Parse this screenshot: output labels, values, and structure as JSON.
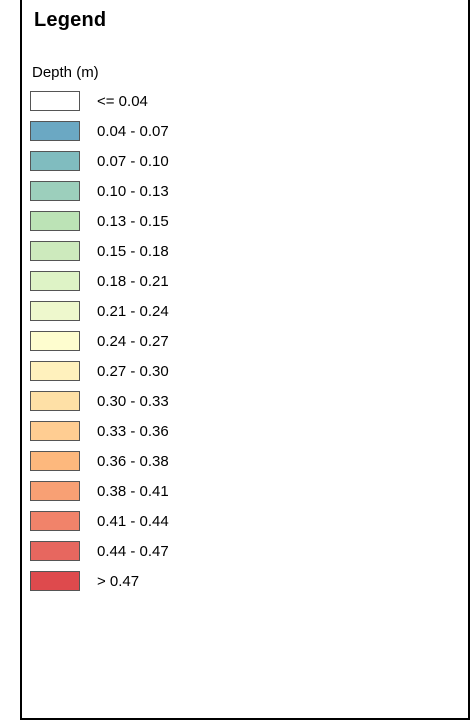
{
  "legend": {
    "title": "Legend",
    "field": "Depth (m)",
    "classes": [
      {
        "label": "<= 0.04",
        "color": "#ffffff"
      },
      {
        "label": "0.04 - 0.07",
        "color": "#6ba8c3"
      },
      {
        "label": "0.07 - 0.10",
        "color": "#80bcbf"
      },
      {
        "label": "0.10 - 0.13",
        "color": "#9ccfbc"
      },
      {
        "label": "0.13 - 0.15",
        "color": "#bce3b6"
      },
      {
        "label": "0.15 - 0.18",
        "color": "#cdeabd"
      },
      {
        "label": "0.18 - 0.21",
        "color": "#def3c6"
      },
      {
        "label": "0.21 - 0.24",
        "color": "#eef8cd"
      },
      {
        "label": "0.24 - 0.27",
        "color": "#fefdcf"
      },
      {
        "label": "0.27 - 0.30",
        "color": "#fff1bd"
      },
      {
        "label": "0.30 - 0.33",
        "color": "#fee0a6"
      },
      {
        "label": "0.33 - 0.36",
        "color": "#ffcd92"
      },
      {
        "label": "0.36 - 0.38",
        "color": "#fdb87d"
      },
      {
        "label": "0.38 - 0.41",
        "color": "#f8a074"
      },
      {
        "label": "0.41 - 0.44",
        "color": "#f1836a"
      },
      {
        "label": "0.44 - 0.47",
        "color": "#e7675f"
      },
      {
        "label": "> 0.47",
        "color": "#de4a4d"
      }
    ]
  }
}
